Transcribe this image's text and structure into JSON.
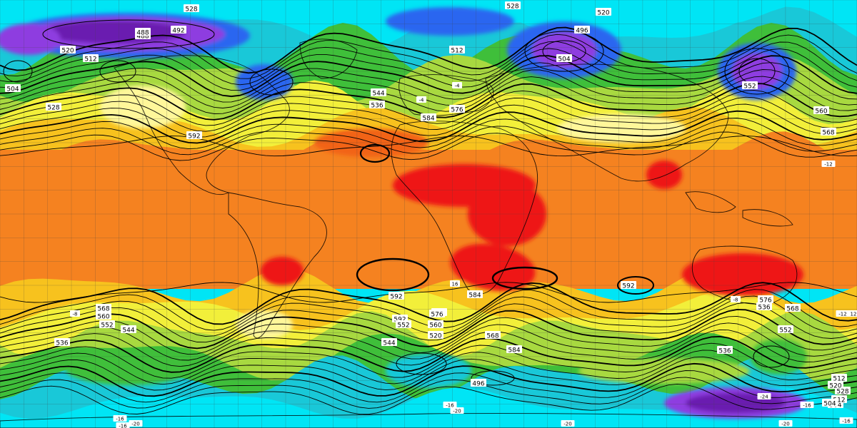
{
  "map": {
    "colors": {
      "purple": "#6a1bb0",
      "violet": "#8e3ee0",
      "blue": "#2b66f0",
      "cyan": "#00e5f5",
      "aqua": "#19c8d8",
      "green": "#3fbf3a",
      "lime": "#a8d940",
      "yellow": "#f2ef3a",
      "paleyellow": "#fff79a",
      "gold": "#f7c21e",
      "orange": "#f58220",
      "deeporange": "#f26419",
      "red": "#ee1717",
      "contour": "#000000",
      "grid": "#444444"
    },
    "contour_labels": [
      "528",
      "528",
      "520",
      "504",
      "512",
      "488",
      "492",
      "496",
      "504",
      "512",
      "520",
      "528",
      "536",
      "544",
      "552",
      "560",
      "568",
      "576",
      "584",
      "592",
      "592",
      "592",
      "592",
      "584",
      "576",
      "568",
      "560",
      "552",
      "544",
      "536",
      "528",
      "520",
      "512",
      "504",
      "496",
      "488",
      "528",
      "520",
      "512",
      "504",
      "536",
      "544",
      "552",
      "560",
      "568",
      "576",
      "584",
      "552",
      "568",
      "536"
    ],
    "temperature_labels": [
      "-16",
      "-16",
      "-20",
      "-20",
      "-16",
      "-20",
      "-24",
      "-16",
      "-12",
      "-12",
      "-8",
      "-8",
      "-4",
      "-4",
      "16",
      "12",
      "-20",
      "-16"
    ]
  }
}
